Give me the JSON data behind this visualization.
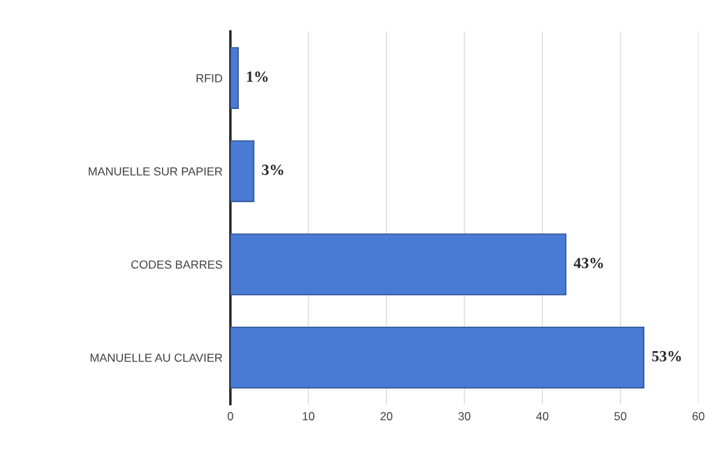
{
  "chart_data": {
    "type": "bar",
    "orientation": "horizontal",
    "categories": [
      "RFID",
      "MANUELLE SUR PAPIER",
      "CODES BARRES",
      "MANUELLE AU CLAVIER"
    ],
    "values": [
      1,
      3,
      43,
      53
    ],
    "value_labels": [
      "1%",
      "3%",
      "43%",
      "53%"
    ],
    "color": "#4a7bd4",
    "xlim": [
      0,
      60
    ],
    "xticks": [
      0,
      10,
      20,
      30,
      40,
      50,
      60
    ],
    "grid": "x",
    "legend": false
  }
}
